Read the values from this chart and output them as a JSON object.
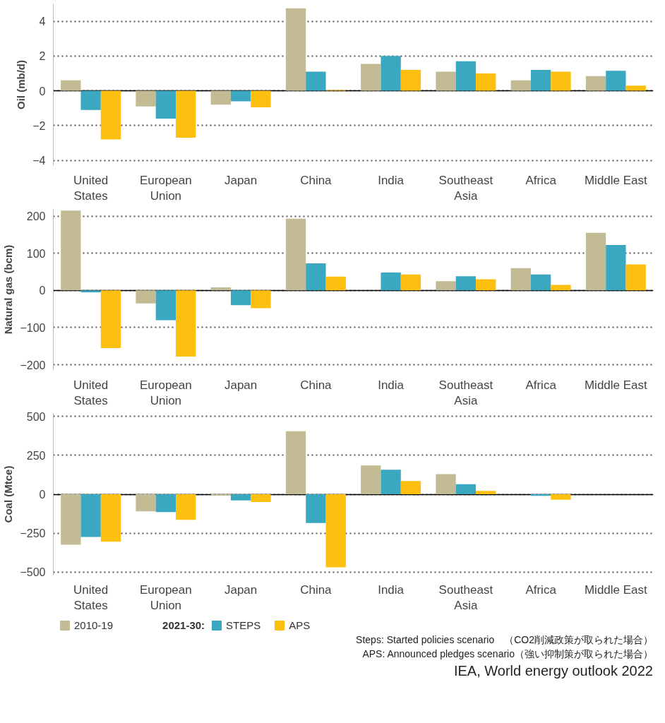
{
  "chart_data": [
    {
      "type": "bar",
      "ylabel": "Oil (mb/d)",
      "categories": [
        "United States",
        "European Union",
        "Japan",
        "China",
        "India",
        "Southeast Asia",
        "Africa",
        "Middle East"
      ],
      "ylim": [
        -4.3,
        5
      ],
      "yticks": [
        -4,
        -2,
        0,
        2,
        4
      ],
      "grid": "y",
      "series": [
        {
          "color": "#c3bb94",
          "values": [
            0.6,
            -0.9,
            -0.8,
            4.75,
            1.55,
            1.1,
            0.6,
            0.85
          ]
        },
        {
          "color": "#3aa8c1",
          "values": [
            -1.1,
            -1.6,
            -0.6,
            1.1,
            2.0,
            1.7,
            1.2,
            1.15
          ]
        },
        {
          "color": "#fdbf10",
          "values": [
            -2.8,
            -2.7,
            -0.95,
            0.05,
            1.2,
            1.0,
            1.1,
            0.3
          ]
        }
      ]
    },
    {
      "type": "bar",
      "ylabel": "Natural gas (bcm)",
      "categories": [
        "United States",
        "European Union",
        "Japan",
        "China",
        "India",
        "Southeast Asia",
        "Africa",
        "Middle East"
      ],
      "ylim": [
        -215,
        220
      ],
      "yticks": [
        -200,
        -100,
        0,
        100,
        200
      ],
      "grid": "y",
      "series": [
        {
          "color": "#c3bb94",
          "values": [
            215,
            -35,
            8,
            193,
            0,
            25,
            60,
            155
          ]
        },
        {
          "color": "#3aa8c1",
          "values": [
            -5,
            -80,
            -40,
            73,
            48,
            38,
            43,
            122
          ]
        },
        {
          "color": "#fdbf10",
          "values": [
            -155,
            -178,
            -48,
            37,
            43,
            30,
            15,
            70
          ]
        }
      ]
    },
    {
      "type": "bar",
      "ylabel": "Coal (Mtce)",
      "categories": [
        "United States",
        "European Union",
        "Japan",
        "China",
        "India",
        "Southeast Asia",
        "Africa",
        "Middle East"
      ],
      "ylim": [
        -520,
        520
      ],
      "yticks": [
        -500,
        -250,
        0,
        250,
        500
      ],
      "grid": "y",
      "legend": "bottom",
      "legend_title": "2021-30:",
      "series": [
        {
          "name": "2010-19",
          "color": "#c3bb94",
          "values": [
            -325,
            -110,
            -8,
            405,
            185,
            130,
            0,
            0
          ]
        },
        {
          "name": "STEPS",
          "color": "#3aa8c1",
          "values": [
            -275,
            -115,
            -40,
            -185,
            158,
            65,
            -10,
            0
          ]
        },
        {
          "name": "APS",
          "color": "#fdbf10",
          "values": [
            -305,
            -165,
            -50,
            -470,
            85,
            22,
            -35,
            0
          ]
        }
      ],
      "annotations": [
        "Steps: Started policies scenario　（CO2削減政策が取られた場合）",
        "APS: Announced pledges scenario（強い抑制策が取られた場合）",
        "IEA, World energy outlook 2022"
      ]
    }
  ]
}
